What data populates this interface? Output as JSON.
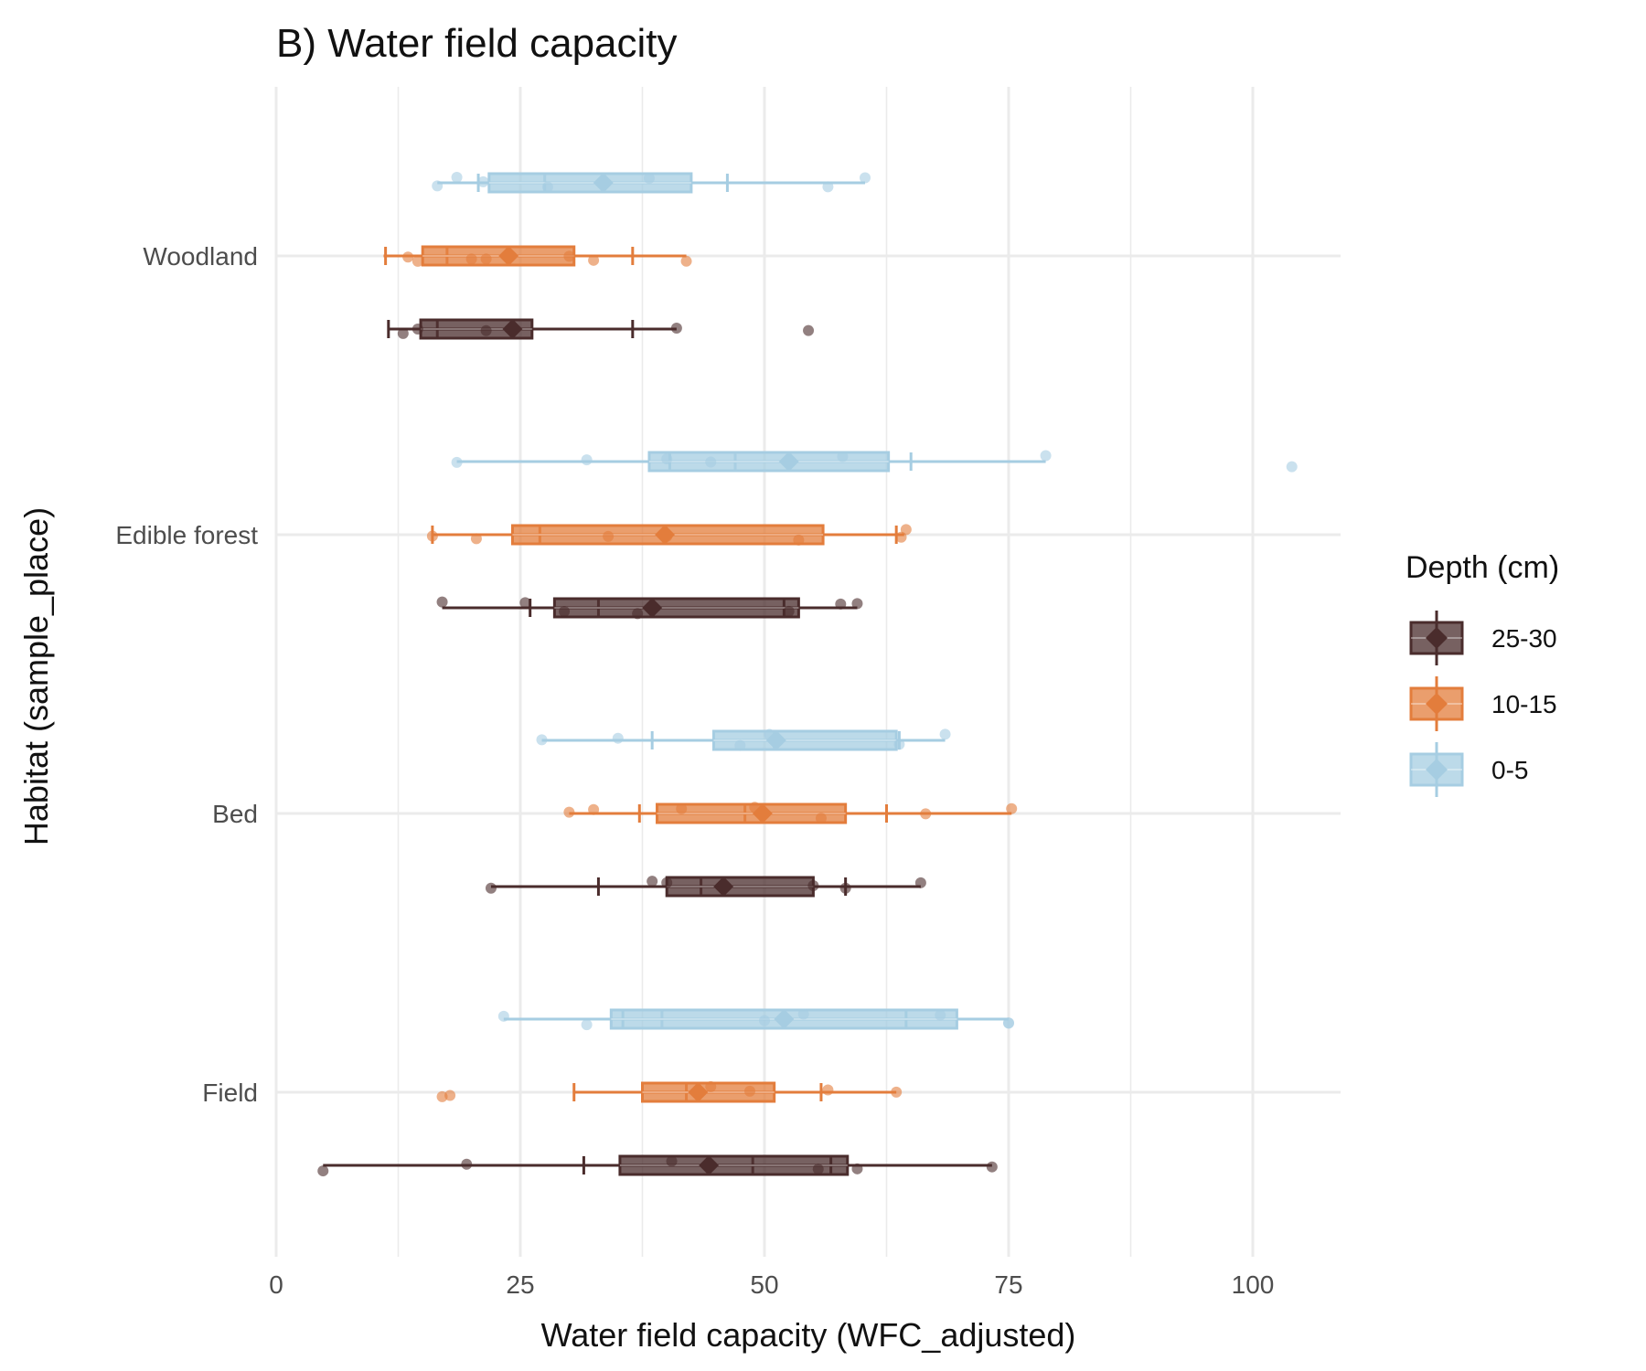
{
  "chart_data": {
    "type": "boxplot",
    "title": "B) Water field capacity",
    "xlabel": "Water field capacity (WFC_adjusted)",
    "ylabel": "Habitat (sample_place)",
    "xlim": [
      0,
      109
    ],
    "x_ticks": [
      0,
      25,
      50,
      75,
      100
    ],
    "x_tick_labels": [
      "0",
      "25",
      "50",
      "75",
      "100"
    ],
    "categories": [
      "Woodland",
      "Edible forest",
      "Bed",
      "Field"
    ],
    "legend": {
      "title": "Depth (cm)",
      "position": "right",
      "entries": [
        "25-30",
        "10-15",
        "0-5"
      ]
    },
    "grid": true,
    "series": [
      {
        "name": "0-5",
        "color": "#a6cde2",
        "groups": [
          {
            "category": "Woodland",
            "whisker_low": 16.5,
            "q1": 21.8,
            "median": 27.5,
            "q3": 42.5,
            "whisker_high": 60.3,
            "mean": 33.5,
            "sd_low": 20.7,
            "sd_high": 46.2,
            "points": [
              16.5,
              18.5,
              21.2,
              27.8,
              38.2,
              56.5,
              60.3
            ]
          },
          {
            "category": "Edible forest",
            "whisker_low": 18.5,
            "q1": 38.2,
            "median": 47.0,
            "q3": 62.7,
            "whisker_high": 78.8,
            "mean": 52.5,
            "sd_low": 40.3,
            "sd_high": 65.0,
            "points": [
              18.5,
              31.8,
              40.0,
              44.5,
              58.0,
              78.8,
              104.0
            ]
          },
          {
            "category": "Bed",
            "whisker_low": 27.2,
            "q1": 44.8,
            "median": 51.0,
            "q3": 63.5,
            "whisker_high": 68.5,
            "mean": 51.2,
            "sd_low": 38.5,
            "sd_high": 63.8,
            "points": [
              27.2,
              35.0,
              47.5,
              50.5,
              63.8,
              68.5
            ]
          },
          {
            "category": "Field",
            "whisker_low": 23.3,
            "q1": 34.3,
            "median": 39.5,
            "q3": 69.7,
            "whisker_high": 75.0,
            "mean": 52.0,
            "sd_low": 35.5,
            "sd_high": 64.5,
            "points": [
              23.3,
              31.8,
              50.0,
              54.0,
              68.0,
              75.0,
              75.0
            ]
          }
        ]
      },
      {
        "name": "10-15",
        "color": "#e37d3c",
        "groups": [
          {
            "category": "Woodland",
            "whisker_low": 11.0,
            "q1": 15.0,
            "median": 17.5,
            "q3": 30.5,
            "whisker_high": 42.0,
            "mean": 23.8,
            "sd_low": 11.2,
            "sd_high": 36.5,
            "points": [
              13.5,
              14.5,
              20.0,
              21.5,
              30.0,
              32.5,
              42.0
            ]
          },
          {
            "category": "Edible forest",
            "whisker_low": 16.0,
            "q1": 24.2,
            "median": 27.0,
            "q3": 56.0,
            "whisker_high": 64.3,
            "mean": 39.8,
            "sd_low": 16.0,
            "sd_high": 63.5,
            "points": [
              16.0,
              20.5,
              34.0,
              40.0,
              53.5,
              64.0,
              64.5
            ]
          },
          {
            "category": "Bed",
            "whisker_low": 30.0,
            "q1": 39.0,
            "median": 48.0,
            "q3": 58.3,
            "whisker_high": 75.3,
            "mean": 49.8,
            "sd_low": 37.2,
            "sd_high": 62.5,
            "points": [
              30.0,
              32.5,
              41.5,
              49.0,
              50.0,
              55.8,
              66.5,
              75.3
            ]
          },
          {
            "category": "Field",
            "whisker_low": 30.5,
            "q1": 37.5,
            "median": 42.0,
            "q3": 51.0,
            "whisker_high": 63.5,
            "mean": 43.2,
            "sd_low": 30.5,
            "sd_high": 55.8,
            "points": [
              17.0,
              17.8,
              44.5,
              48.5,
              56.5,
              63.5
            ]
          }
        ]
      },
      {
        "name": "25-30",
        "color": "#4a2c2c",
        "groups": [
          {
            "category": "Woodland",
            "whisker_low": 11.5,
            "q1": 14.8,
            "median": 16.5,
            "q3": 26.2,
            "whisker_high": 41.0,
            "mean": 24.2,
            "sd_low": 11.5,
            "sd_high": 36.5,
            "points": [
              13.0,
              14.5,
              21.5,
              41.0,
              54.5
            ]
          },
          {
            "category": "Edible forest",
            "whisker_low": 17.0,
            "q1": 28.5,
            "median": 33.0,
            "q3": 53.5,
            "whisker_high": 59.5,
            "mean": 38.5,
            "sd_low": 26.0,
            "sd_high": 52.0,
            "points": [
              17.0,
              25.5,
              29.5,
              37.0,
              52.5,
              57.8,
              59.5
            ]
          },
          {
            "category": "Bed",
            "whisker_low": 22.0,
            "q1": 40.0,
            "median": 43.5,
            "q3": 55.0,
            "whisker_high": 66.0,
            "mean": 45.8,
            "sd_low": 33.0,
            "sd_high": 58.3,
            "points": [
              22.0,
              38.5,
              40.0,
              55.0,
              58.3,
              66.0
            ]
          },
          {
            "category": "Field",
            "whisker_low": 4.8,
            "q1": 35.2,
            "median": 48.8,
            "q3": 58.5,
            "whisker_high": 73.3,
            "mean": 44.3,
            "sd_low": 31.5,
            "sd_high": 56.8,
            "points": [
              4.8,
              19.5,
              40.5,
              55.5,
              59.5,
              73.3
            ]
          }
        ]
      }
    ]
  }
}
